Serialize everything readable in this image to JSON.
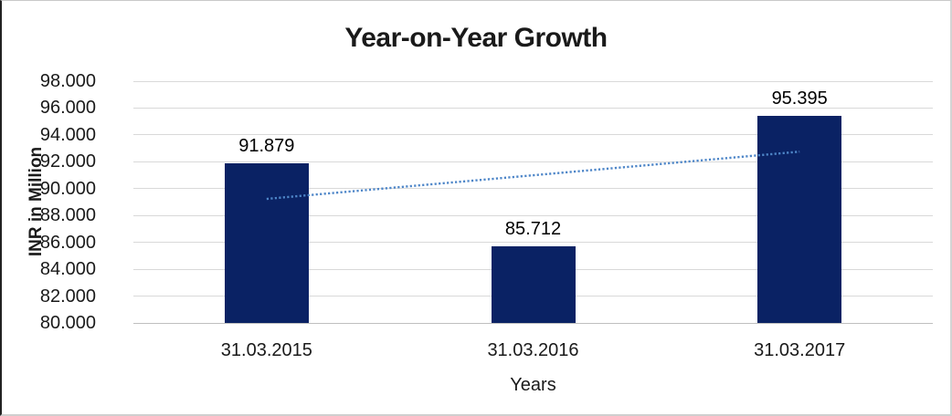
{
  "window": {
    "background_color": "#ffffff",
    "frame_border_color": "#cfcfcf",
    "frame_left_border_color": "#222222"
  },
  "chart": {
    "title": "Year-on-Year Growth",
    "y_axis_title": "INR in Million",
    "x_axis_title": "Years"
  },
  "chart_data": {
    "type": "bar",
    "title": "Year-on-Year Growth",
    "xlabel": "Years",
    "ylabel": "INR in Million",
    "categories": [
      "31.03.2015",
      "31.03.2016",
      "31.03.2017"
    ],
    "values": [
      91.879,
      85.712,
      95.395
    ],
    "data_labels": [
      "91.879",
      "85.712",
      "95.395"
    ],
    "y_ticks": [
      "98.000",
      "96.000",
      "94.000",
      "92.000",
      "90.000",
      "88.000",
      "86.000",
      "84.000",
      "82.000",
      "80.000"
    ],
    "ylim": [
      80,
      98
    ],
    "grid": true,
    "legend": "none",
    "bar_color": "#0a2264",
    "gridline_color": "#d9d9d9",
    "axis_line_color": "#bfbfbf",
    "trendline": {
      "type": "linear",
      "style": "dotted",
      "color": "#4e86c8",
      "start_value": 89.237,
      "end_value": 92.753
    }
  }
}
